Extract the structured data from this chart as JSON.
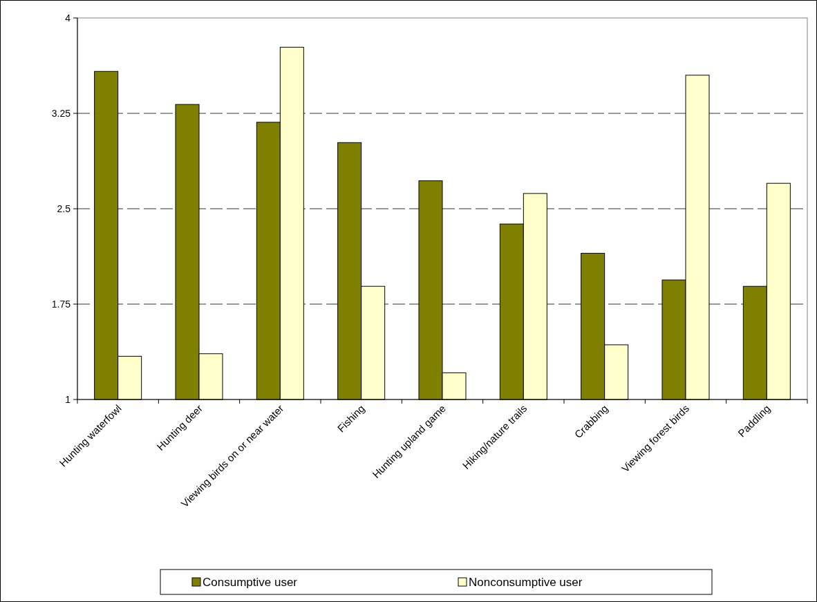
{
  "chart_data": {
    "type": "bar",
    "categories": [
      "Hunting waterfowl",
      "Hunting deer",
      "Viewing birds on or near water",
      "Fishing",
      "Hunting upland game",
      "Hiking/nature trails",
      "Crabbing",
      "Viewing forest birds",
      "Paddling"
    ],
    "series": [
      {
        "name": "Consumptive user",
        "color": "#808000",
        "values": [
          3.58,
          3.32,
          3.18,
          3.02,
          2.72,
          2.38,
          2.15,
          1.94,
          1.89
        ]
      },
      {
        "name": "Nonconsumptive user",
        "color": "#ffffcc",
        "values": [
          1.34,
          1.36,
          3.77,
          1.89,
          1.21,
          2.62,
          1.43,
          3.55,
          2.7
        ]
      }
    ],
    "ylim": [
      1,
      4
    ],
    "yticks": [
      1,
      1.75,
      2.5,
      3.25,
      4
    ],
    "grid": "y",
    "legend": "bottom"
  }
}
